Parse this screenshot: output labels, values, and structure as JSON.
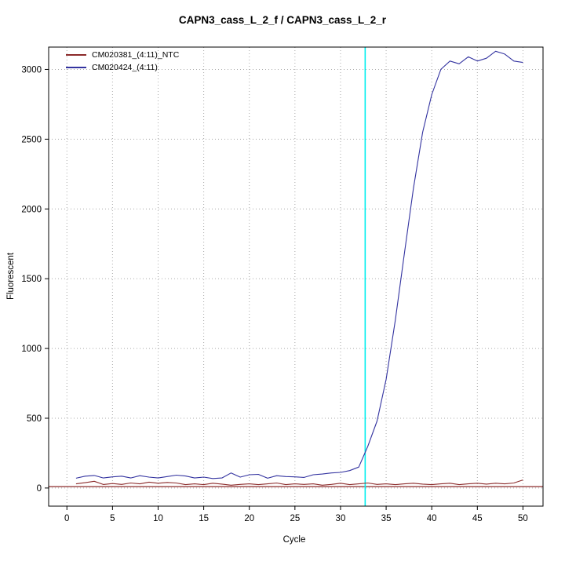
{
  "chart_data": {
    "type": "line",
    "title": "CAPN3_cass_L_2_f / CAPN3_cass_L_2_r",
    "xlabel": "Cycle",
    "ylabel": "Fluorescent",
    "xlim": [
      -2,
      52.2
    ],
    "ylim": [
      -130,
      3160
    ],
    "xticks": [
      0,
      5,
      10,
      15,
      20,
      25,
      30,
      35,
      40,
      45,
      50
    ],
    "yticks": [
      0,
      500,
      1000,
      1500,
      2000,
      2500,
      3000
    ],
    "grid": "dotted",
    "grid_color": "#aaaaaa",
    "legend_position": "top-left",
    "threshold_line": {
      "y": 10,
      "color": "#8b2a2a"
    },
    "ct_line": {
      "x": 32.7,
      "color": "#00eeee"
    },
    "x": [
      1,
      2,
      3,
      4,
      5,
      6,
      7,
      8,
      9,
      10,
      11,
      12,
      13,
      14,
      15,
      16,
      17,
      18,
      19,
      20,
      21,
      22,
      23,
      24,
      25,
      26,
      27,
      28,
      29,
      30,
      31,
      32,
      33,
      34,
      35,
      36,
      37,
      38,
      39,
      40,
      41,
      42,
      43,
      44,
      45,
      46,
      47,
      48,
      49,
      50
    ],
    "series": [
      {
        "name": "CM020381_(4:11)_NTC",
        "color": "#8b2a2a",
        "values": [
          30,
          38,
          48,
          25,
          32,
          26,
          36,
          30,
          42,
          34,
          40,
          36,
          24,
          30,
          24,
          34,
          28,
          20,
          26,
          30,
          24,
          30,
          36,
          24,
          30,
          26,
          30,
          20,
          26,
          34,
          24,
          30,
          36,
          26,
          30,
          24,
          30,
          34,
          28,
          24,
          30,
          34,
          24,
          30,
          34,
          28,
          34,
          30,
          36,
          58
        ]
      },
      {
        "name": "CM020424_(4:11)",
        "color": "#3333a0",
        "values": [
          70,
          85,
          90,
          72,
          80,
          85,
          72,
          88,
          78,
          72,
          82,
          92,
          86,
          72,
          78,
          68,
          72,
          108,
          78,
          95,
          98,
          70,
          88,
          82,
          80,
          76,
          95,
          100,
          108,
          112,
          125,
          150,
          300,
          480,
          780,
          1200,
          1680,
          2150,
          2550,
          2820,
          3000,
          3060,
          3040,
          3090,
          3060,
          3080,
          3130,
          3110,
          3060,
          3050
        ]
      }
    ]
  }
}
